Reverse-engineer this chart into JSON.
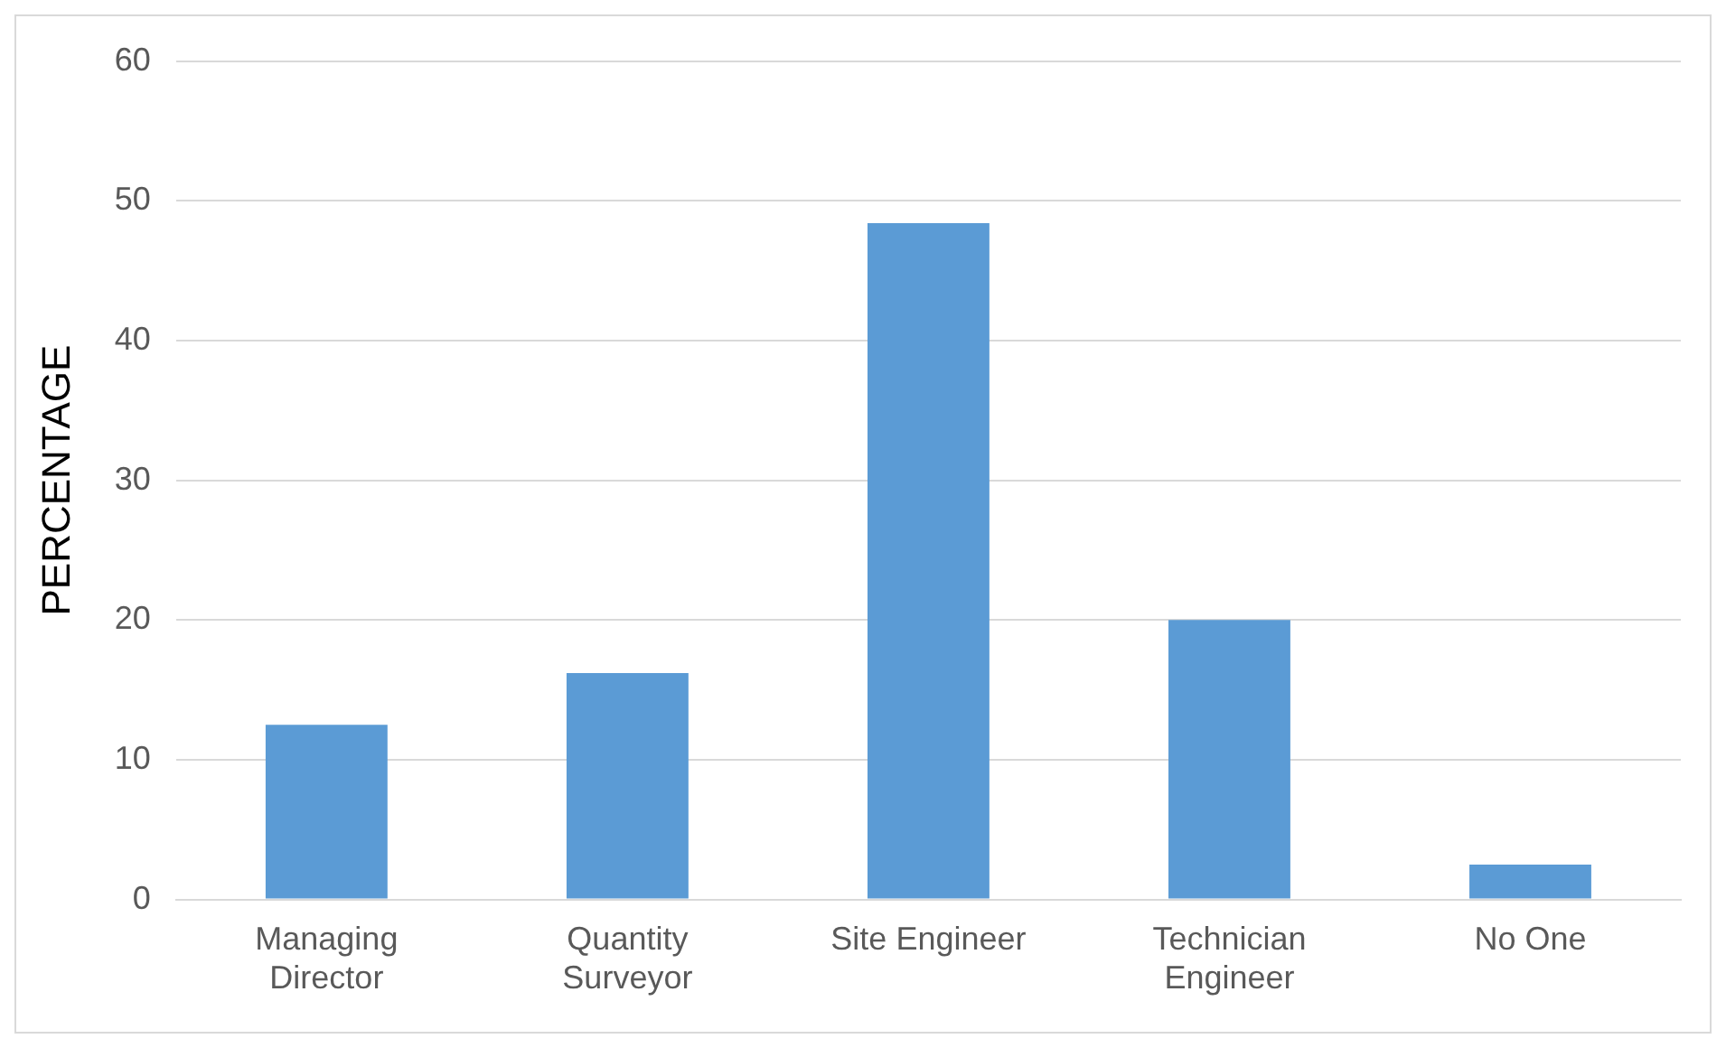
{
  "chart_data": {
    "type": "bar",
    "ylabel": "PERCENTAGE",
    "categories": [
      "Managing Director",
      "Quantity Surveyor",
      "Site Engineer",
      "Technician Engineer",
      "No One"
    ],
    "values": [
      12.5,
      16.2,
      48.4,
      20,
      2.5
    ],
    "color": "#5b9bd5",
    "ylim": [
      0,
      60
    ],
    "yticks": [
      0,
      10,
      20,
      30,
      40,
      50,
      60
    ],
    "grid": "y"
  }
}
